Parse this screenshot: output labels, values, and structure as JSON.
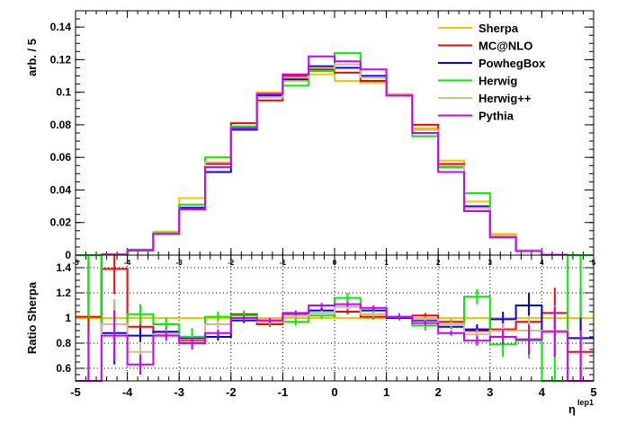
{
  "chart_data": [
    {
      "type": "line",
      "step": true,
      "xlabel": "",
      "ylabel": "arb. / 5",
      "xlim": [
        -5,
        5
      ],
      "ylim": [
        0,
        0.15
      ],
      "y_ticks": [
        {
          "v": 0,
          "label": "0"
        },
        {
          "v": 0.02,
          "label": "0.02"
        },
        {
          "v": 0.04,
          "label": "0.04"
        },
        {
          "v": 0.06,
          "label": "0.06"
        },
        {
          "v": 0.08,
          "label": "0.08"
        },
        {
          "v": 0.1,
          "label": "0.1"
        },
        {
          "v": 0.12,
          "label": "0.12"
        },
        {
          "v": 0.14,
          "label": "0.14"
        }
      ],
      "x_ticks": [
        {
          "v": -5,
          "label": "-5"
        },
        {
          "v": -4,
          "label": "-4"
        },
        {
          "v": -3,
          "label": "-3"
        },
        {
          "v": -2,
          "label": "-2"
        },
        {
          "v": -1,
          "label": "-1"
        },
        {
          "v": 0,
          "label": "0"
        },
        {
          "v": 1,
          "label": "1"
        },
        {
          "v": 2,
          "label": "2"
        },
        {
          "v": 3,
          "label": "3"
        },
        {
          "v": 4,
          "label": "4"
        },
        {
          "v": 5,
          "label": "5"
        }
      ],
      "bin_edges": [
        -5,
        -4.5,
        -4,
        -3.5,
        -3,
        -2.5,
        -2,
        -1.5,
        -1,
        -0.5,
        0,
        0.5,
        1,
        1.5,
        2,
        2.5,
        3,
        3.5,
        4,
        4.5,
        5
      ],
      "legend_position": "top-right",
      "series": [
        {
          "name": "Sherpa",
          "color": "#ffc000",
          "values": [
            0,
            0.0003,
            0.003,
            0.0145,
            0.035,
            0.06,
            0.078,
            0.1,
            0.107,
            0.111,
            0.107,
            0.106,
            0.098,
            0.078,
            0.058,
            0.033,
            0.013,
            0.003,
            0.0002,
            0
          ]
        },
        {
          "name": "MC@NLO",
          "color": "#ff0000",
          "values": [
            0,
            0.0004,
            0.003,
            0.013,
            0.029,
            0.056,
            0.081,
            0.095,
            0.11,
            0.114,
            0.112,
            0.107,
            0.099,
            0.08,
            0.056,
            0.029,
            0.012,
            0.003,
            0.0003,
            0
          ]
        },
        {
          "name": "PowhegBox",
          "color": "#0000ff",
          "values": [
            0,
            0.0003,
            0.003,
            0.013,
            0.029,
            0.051,
            0.077,
            0.098,
            0.108,
            0.116,
            0.115,
            0.11,
            0.098,
            0.077,
            0.054,
            0.03,
            0.011,
            0.003,
            0.0003,
            0
          ]
        },
        {
          "name": "Herwig",
          "color": "#00ee00",
          "values": [
            0,
            0.0004,
            0.0035,
            0.0135,
            0.031,
            0.06,
            0.079,
            0.097,
            0.104,
            0.113,
            0.124,
            0.109,
            0.098,
            0.073,
            0.054,
            0.038,
            0.012,
            0.003,
            0.0003,
            0
          ]
        },
        {
          "name": "Herwig++",
          "color": "#d7b98c",
          "values": [
            0,
            0.0003,
            0.003,
            0.013,
            0.028,
            0.057,
            0.078,
            0.097,
            0.109,
            0.115,
            0.117,
            0.109,
            0.099,
            0.077,
            0.055,
            0.029,
            0.012,
            0.003,
            0.0002,
            0
          ]
        },
        {
          "name": "Pythia",
          "color": "#cc00ff",
          "values": [
            0,
            0.0003,
            0.003,
            0.013,
            0.028,
            0.054,
            0.078,
            0.099,
            0.111,
            0.122,
            0.119,
            0.114,
            0.098,
            0.075,
            0.051,
            0.027,
            0.011,
            0.0025,
            0.0002,
            0
          ]
        }
      ]
    },
    {
      "type": "line",
      "step": true,
      "xlabel": "η",
      "xlabel_sup": "lep1",
      "ylabel": "Ratio Sherpa",
      "xlim": [
        -5,
        5
      ],
      "ylim": [
        0.5,
        1.5
      ],
      "y_ticks": [
        {
          "v": 0.6,
          "label": "0.6"
        },
        {
          "v": 0.8,
          "label": "0.8"
        },
        {
          "v": 1.0,
          "label": "1"
        },
        {
          "v": 1.2,
          "label": "1.2"
        },
        {
          "v": 1.4,
          "label": "1.4"
        }
      ],
      "x_ticks": [
        {
          "v": -5,
          "label": "-5"
        },
        {
          "v": -4,
          "label": "-4"
        },
        {
          "v": -3,
          "label": "-3"
        },
        {
          "v": -2,
          "label": "-2"
        },
        {
          "v": -1,
          "label": "-1"
        },
        {
          "v": 0,
          "label": "0"
        },
        {
          "v": 1,
          "label": "1"
        },
        {
          "v": 2,
          "label": "2"
        },
        {
          "v": 3,
          "label": "3"
        },
        {
          "v": 4,
          "label": "4"
        },
        {
          "v": 5,
          "label": "5"
        }
      ],
      "bin_edges": [
        -5,
        -4.5,
        -4,
        -3.5,
        -3,
        -2.5,
        -2,
        -1.5,
        -1,
        -0.5,
        0,
        0.5,
        1,
        1.5,
        2,
        2.5,
        3,
        3.5,
        4,
        4.5,
        5
      ],
      "series": [
        {
          "name": "Sherpa",
          "color": "#ffc000",
          "values": [
            1,
            1,
            1,
            1,
            1,
            1,
            1,
            1,
            1,
            1,
            1,
            1,
            1,
            1,
            1,
            1,
            1,
            1,
            1,
            1
          ],
          "errors": [
            0,
            0,
            0,
            0,
            0,
            0,
            0,
            0,
            0,
            0,
            0,
            0,
            0,
            0,
            0,
            0,
            0,
            0,
            0,
            0
          ]
        },
        {
          "name": "MC@NLO",
          "color": "#ff0000",
          "values": [
            1.01,
            1.39,
            0.93,
            0.89,
            0.82,
            0.95,
            1.03,
            0.95,
            1.03,
            1.04,
            1.05,
            1.01,
            1.01,
            1.02,
            0.97,
            0.9,
            0.91,
            0.97,
            1.04,
            0.73
          ],
          "errors": [
            0.4,
            0.2,
            0.06,
            0.04,
            0.04,
            0.03,
            0.02,
            0.02,
            0.02,
            0.02,
            0.02,
            0.02,
            0.02,
            0.02,
            0.02,
            0.04,
            0.06,
            0.1,
            0.2,
            0.3
          ]
        },
        {
          "name": "PowhegBox",
          "color": "#0000ff",
          "values": [
            1.5,
            0.88,
            0.86,
            0.89,
            0.84,
            0.85,
            0.98,
            0.98,
            1.02,
            1.06,
            1.09,
            1.06,
            1.0,
            0.98,
            0.93,
            0.91,
            0.99,
            1.1,
            0.9,
            0.84
          ],
          "errors": [
            0.5,
            0.25,
            0.06,
            0.04,
            0.04,
            0.03,
            0.02,
            0.02,
            0.02,
            0.02,
            0.02,
            0.02,
            0.02,
            0.02,
            0.02,
            0.04,
            0.06,
            0.1,
            0.2,
            0.4
          ]
        },
        {
          "name": "Herwig",
          "color": "#00ee00",
          "values": [
            1.5,
            0.95,
            1.03,
            0.95,
            0.85,
            1.01,
            1.02,
            0.97,
            0.97,
            1.02,
            1.16,
            1.03,
            1.01,
            0.94,
            0.95,
            1.17,
            0.79,
            0.82,
            0.5,
            1.5
          ],
          "errors": [
            0.5,
            0.2,
            0.08,
            0.05,
            0.07,
            0.04,
            0.04,
            0.03,
            0.03,
            0.03,
            0.04,
            0.03,
            0.03,
            0.04,
            0.04,
            0.06,
            0.1,
            0.14,
            0.2,
            0.5
          ]
        },
        {
          "name": "Herwig++",
          "color": "#d7b98c",
          "values": [
            0.5,
            0.95,
            0.73,
            0.87,
            0.81,
            0.95,
            1.0,
            0.97,
            1.02,
            1.04,
            1.09,
            1.03,
            1.01,
            0.99,
            0.95,
            0.87,
            0.9,
            0.9,
            0.9,
            0.5
          ],
          "errors": [
            0.4,
            0.2,
            0.08,
            0.04,
            0.05,
            0.03,
            0.02,
            0.02,
            0.02,
            0.02,
            0.02,
            0.02,
            0.02,
            0.02,
            0.02,
            0.04,
            0.06,
            0.12,
            0.2,
            0.4
          ]
        },
        {
          "name": "Pythia",
          "color": "#cc00ff",
          "values": [
            0.5,
            0.86,
            0.63,
            0.86,
            0.8,
            0.88,
            1.0,
            0.98,
            1.04,
            1.1,
            1.11,
            1.08,
            1.01,
            0.96,
            0.88,
            0.82,
            0.85,
            0.83,
            0.89,
            0.5
          ],
          "errors": [
            0.4,
            0.2,
            0.08,
            0.04,
            0.05,
            0.03,
            0.02,
            0.02,
            0.02,
            0.02,
            0.02,
            0.02,
            0.02,
            0.02,
            0.02,
            0.04,
            0.06,
            0.12,
            0.2,
            0.4
          ]
        }
      ]
    }
  ]
}
